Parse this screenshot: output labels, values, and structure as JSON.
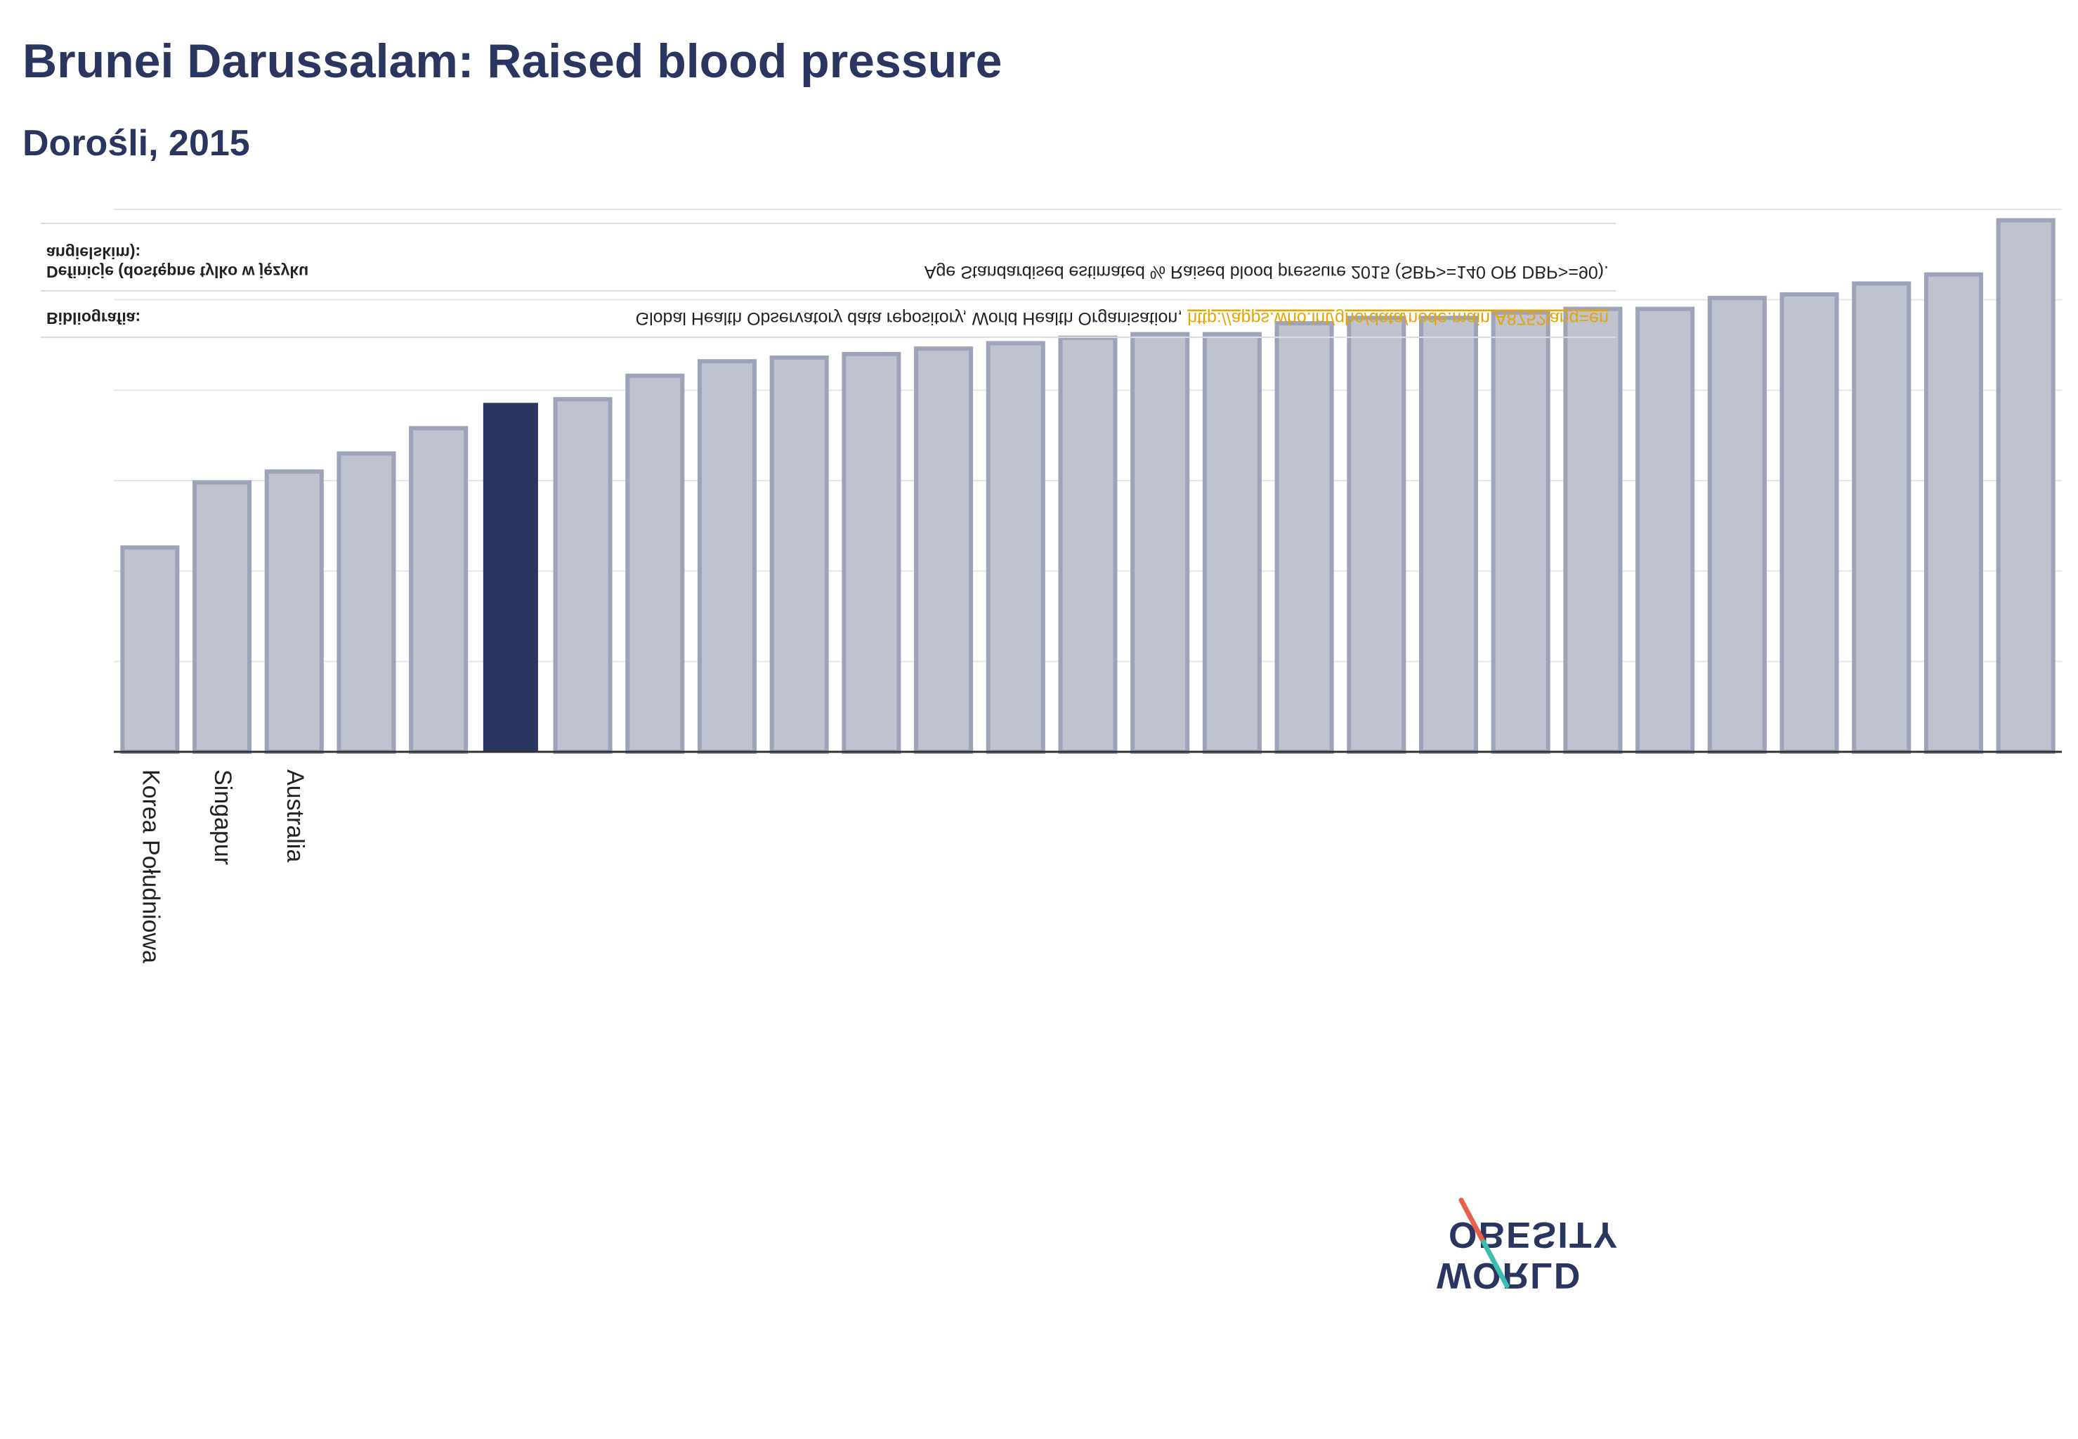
{
  "header": {
    "title": "Brunei Darussalam: Raised blood pressure",
    "subtitle": "Dorośli, 2015"
  },
  "footnote": {
    "definition_label_line1": "Definicje (dostępne tylko w języku",
    "definition_label_line2": "angielskim):",
    "definition_text": "Age Standardised estimated % Raised blood pressure 2015 (SBP>=140 OR DBP>=90).",
    "bibliography_label": "Bibliografia:",
    "bibliography_text": "Global Health Observatory data repository, World Health Organisation,",
    "bibliography_link": "http://apps.who.int/gho/data/node.main.A875?lang=en"
  },
  "logo": {
    "line1": "OBESITY",
    "line2": "WORLD"
  },
  "colors": {
    "highlight": "#2a3560",
    "bar_fill": "#bfc2cf",
    "bar_stroke": "#9da3b8",
    "axis": "#333333",
    "grid": "#e6e6e6",
    "logo_red": "#e8604c",
    "logo_teal": "#3bbdb0"
  },
  "chart_data": {
    "type": "bar",
    "title": "Brunei Darussalam: Raised blood pressure",
    "subtitle": "Dorośli, 2015",
    "highlight_index": 5,
    "categories": [
      "Korea Południowa",
      "Singapur",
      "Australia",
      "",
      "",
      "",
      "",
      "",
      "",
      "",
      "",
      "",
      "",
      "",
      "",
      "",
      "",
      "",
      "",
      "",
      "",
      "",
      "",
      "",
      "",
      "",
      ""
    ],
    "values": [
      11.3,
      14.9,
      15.5,
      16.5,
      17.9,
      19.3,
      19.5,
      20.8,
      21.6,
      21.8,
      22.0,
      22.3,
      22.6,
      22.9,
      23.1,
      23.1,
      23.7,
      24.0,
      24.0,
      24.3,
      24.5,
      24.5,
      25.1,
      25.3,
      25.9,
      26.4,
      29.4
    ],
    "ylim": [
      0,
      30
    ],
    "grid": true,
    "legend": "none"
  }
}
